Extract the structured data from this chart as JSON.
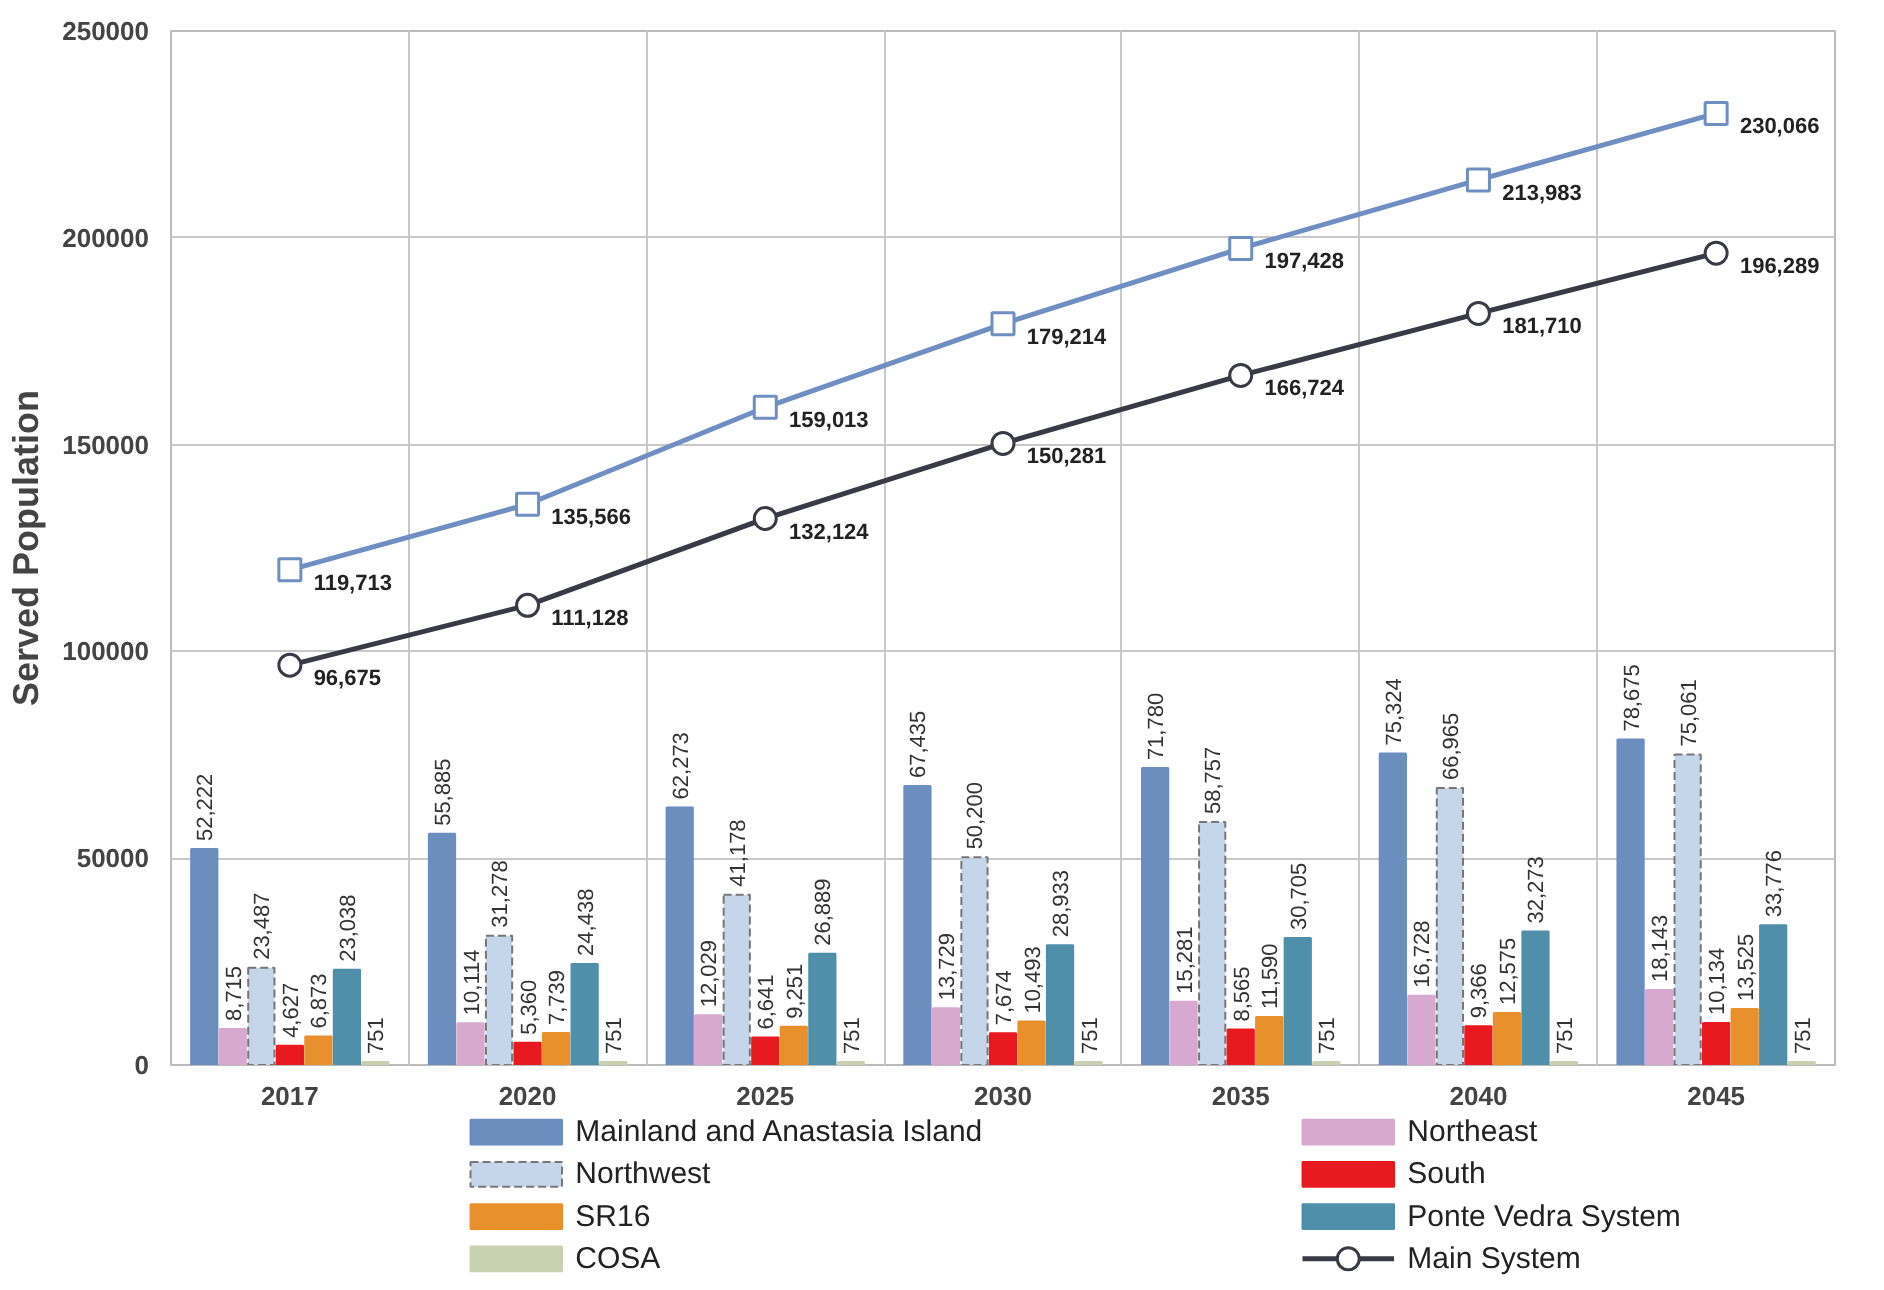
{
  "chart_data": {
    "type": "bar",
    "ylabel": "Served Population",
    "categories": [
      "2017",
      "2020",
      "2025",
      "2030",
      "2035",
      "2040",
      "2045"
    ],
    "ylim": [
      0,
      250000
    ],
    "yticks": [
      0,
      50000,
      100000,
      150000,
      200000,
      250000
    ],
    "grid": true,
    "legend": "bottom",
    "series": [
      {
        "name": "Mainland and Anastasia Island",
        "color": "#6b8ebf",
        "values": [
          52222,
          55885,
          62273,
          67435,
          71780,
          75324,
          78675
        ],
        "value_labels": [
          "52,222",
          "55,885",
          "62,273",
          "67,435",
          "71,780",
          "75,324",
          "78,675"
        ]
      },
      {
        "name": "Northeast",
        "color": "#d8a9d0",
        "values": [
          8715,
          10114,
          12029,
          13729,
          15281,
          16728,
          18143
        ],
        "value_labels": [
          "8,715",
          "10,114",
          "12,029",
          "13,729",
          "15,281",
          "16,728",
          "18,143"
        ]
      },
      {
        "name": "Northwest",
        "color": "#c5d5ea",
        "values": [
          23487,
          31278,
          41178,
          50200,
          58757,
          66965,
          75061
        ],
        "value_labels": [
          "23,487",
          "31,278",
          "41,178",
          "50,200",
          "58,757",
          "66,965",
          "75,061"
        ]
      },
      {
        "name": "South",
        "color": "#e8191f",
        "values": [
          4627,
          5360,
          6641,
          7674,
          8565,
          9366,
          10134
        ],
        "value_labels": [
          "4,627",
          "5,360",
          "6,641",
          "7,674",
          "8,565",
          "9,366",
          "10,134"
        ]
      },
      {
        "name": "SR16",
        "color": "#e8902c",
        "values": [
          6873,
          7739,
          9251,
          10493,
          11590,
          12575,
          13525
        ],
        "value_labels": [
          "6,873",
          "7,739",
          "9,251",
          "10,493",
          "11,590",
          "12,575",
          "13,525"
        ]
      },
      {
        "name": "Ponte Vedra System",
        "color": "#4f8faa",
        "values": [
          23038,
          24438,
          26889,
          28933,
          30705,
          32273,
          33776
        ],
        "value_labels": [
          "23,038",
          "24,438",
          "26,889",
          "28,933",
          "30,705",
          "32,273",
          "33,776"
        ]
      },
      {
        "name": "COSA",
        "color": "#c8d2b0",
        "values": [
          751,
          751,
          751,
          751,
          751,
          751,
          751
        ],
        "value_labels": [
          "751",
          "751",
          "751",
          "751",
          "751",
          "751",
          "751"
        ]
      },
      {
        "name": "Main System",
        "type": "line",
        "marker": "circle",
        "color": "#3a3a46",
        "values": [
          96675,
          111128,
          132124,
          150281,
          166724,
          181710,
          196289
        ],
        "value_labels": [
          "96,675",
          "111,128",
          "132,124",
          "150,281",
          "166,724",
          "181,710",
          "196,289"
        ]
      },
      {
        "type": "line",
        "marker": "square",
        "color": "#6f8fc2",
        "values": [
          119713,
          135566,
          159013,
          179214,
          197428,
          213983,
          230066
        ],
        "value_labels": [
          "119,713",
          "135,566",
          "159,013",
          "179,214",
          "197,428",
          "213,983",
          "230,066"
        ]
      }
    ]
  }
}
